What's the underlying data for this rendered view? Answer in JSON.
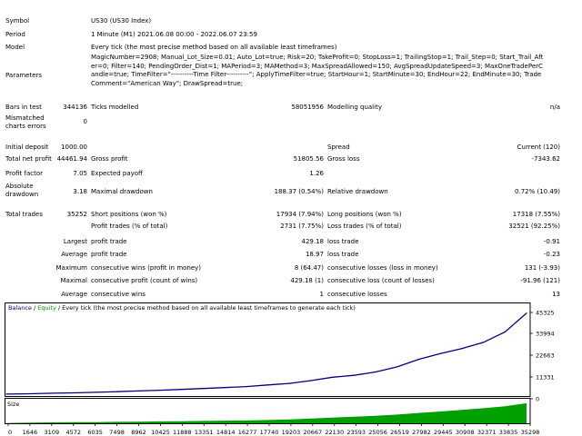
{
  "header": {
    "symbol_label": "Symbol",
    "symbol_value": "US30 (US30 Index)",
    "period_label": "Period",
    "period_value": "1 Minute (M1) 2021.06.08 00:00 - 2022.06.07 23:59",
    "model_label": "Model",
    "model_value": "Every tick (the most precise method based on all available least timeframes)",
    "parameters_label": "Parameters",
    "parameters_value": "MagicNumber=2908; Manual_Lot_Size=0.01; Auto_Lot=true; Risk=20; TakeProfit=0; StopLoss=1; TrailingStop=1; Trail_Step=0; Start_Trail_After=0; Filter=140; PendingOrder_Dist=1; MAPeriod=3; MAMethod=3; MaxSpreadAllowed=150; AvgSpreadUpdateSpeed=3; MaxOneTradePerCandle=true; TimeFilter=\"----------Time Filter----------\"; ApplyTimeFilter=true; StartHour=1; StartMinute=30; EndHour=22; EndMinute=30; TradeComment=\"American Way\"; DrawSpread=true;"
  },
  "stats": {
    "bars_label": "Bars in test",
    "bars_value": "344136",
    "ticks_label": "Ticks modelled",
    "ticks_value": "58051956",
    "quality_label": "Modelling quality",
    "quality_value": "n/a",
    "mismatched_label": "Mismatched charts errors",
    "mismatched_value": "0",
    "initial_label": "Initial deposit",
    "initial_value": "1000.00",
    "spread_label": "Spread",
    "spread_value": "Current (120)",
    "netprofit_label": "Total net profit",
    "netprofit_value": "44461.94",
    "grossprofit_label": "Gross profit",
    "grossprofit_value": "51805.56",
    "grossloss_label": "Gross loss",
    "grossloss_value": "-7343.62",
    "pf_label": "Profit factor",
    "pf_value": "7.05",
    "ep_label": "Expected payoff",
    "ep_value": "1.26",
    "absdd_label": "Absolute drawdown",
    "absdd_value": "3.18",
    "maxdd_label": "Maximal drawdown",
    "maxdd_value": "188.37 (0.54%)",
    "reldd_label": "Relative drawdown",
    "reldd_value": "0.72% (10.49)",
    "trades_label": "Total trades",
    "trades_value": "35252",
    "short_label": "Short positions (won %)",
    "short_value": "17934 (7.94%)",
    "long_label": "Long positions (won %)",
    "long_value": "17318 (7.55%)",
    "proftr_label": "Profit trades (% of total)",
    "proftr_value": "2731 (7.75%)",
    "losstr_label": "Loss trades (% of total)",
    "losstr_value": "32521 (92.25%)",
    "largest_label": "Largest",
    "largest_profit_label": "profit trade",
    "largest_profit_value": "429.18",
    "largest_loss_label": "loss trade",
    "largest_loss_value": "-0.91",
    "average_label": "Average",
    "average_profit_label": "profit trade",
    "average_profit_value": "18.97",
    "average_loss_label": "loss trade",
    "average_loss_value": "-0.23",
    "maxcons_label": "Maximum",
    "maxcons_wins_label": "consecutive wins (profit in money)",
    "maxcons_wins_value": "8 (64.47)",
    "maxcons_losses_label": "consecutive losses (loss in money)",
    "maxcons_losses_value": "131 (-3.93)",
    "maxlcons_label": "Maximal",
    "maxlcons_wins_label": "consecutive profit (count of wins)",
    "maxlcons_wins_value": "429.18 (1)",
    "maxlcons_losses_label": "consecutive loss (count of losses)",
    "maxlcons_losses_value": "-91.96 (121)",
    "avgcons_label": "Average",
    "avgcons_wins_label": "consecutive wins",
    "avgcons_wins_value": "1",
    "avgcons_losses_label": "consecutive losses",
    "avgcons_losses_value": "13"
  },
  "chart_data": {
    "type": "area",
    "legend": [
      {
        "text": "Balance",
        "color": "#000080"
      },
      {
        "text": " / ",
        "color": "#000000"
      },
      {
        "text": "Equity",
        "color": "#00a000"
      },
      {
        "text": " / Every tick (the most precise method based on all available least timeframes to generate each tick)",
        "color": "#000000"
      }
    ],
    "size_label": "Size",
    "y_ticks": [
      "45325",
      "33994",
      "22663",
      "11331",
      "0"
    ],
    "x_ticks": [
      "0",
      "1646",
      "3109",
      "4572",
      "6035",
      "7498",
      "8962",
      "10425",
      "11888",
      "13351",
      "14814",
      "16277",
      "17740",
      "19203",
      "20667",
      "22130",
      "23593",
      "25056",
      "26519",
      "27982",
      "29445",
      "30908",
      "32371",
      "33835",
      "35298"
    ],
    "colors": {
      "balance": "#000080",
      "volume": "#00a000",
      "frame": "#000000"
    },
    "ylim": [
      0,
      45325
    ],
    "xlim": [
      0,
      35298
    ],
    "balance": [
      [
        0,
        1000
      ],
      [
        1646,
        1200
      ],
      [
        3109,
        1500
      ],
      [
        4572,
        1700
      ],
      [
        6035,
        2000
      ],
      [
        7498,
        2300
      ],
      [
        8962,
        2700
      ],
      [
        10425,
        3100
      ],
      [
        11888,
        3500
      ],
      [
        13351,
        4000
      ],
      [
        14814,
        4500
      ],
      [
        16277,
        5000
      ],
      [
        17740,
        5900
      ],
      [
        19203,
        6700
      ],
      [
        20667,
        8200
      ],
      [
        22130,
        10000
      ],
      [
        23593,
        11000
      ],
      [
        25056,
        12800
      ],
      [
        26519,
        15500
      ],
      [
        27982,
        19500
      ],
      [
        29445,
        22500
      ],
      [
        30908,
        25200
      ],
      [
        32371,
        28500
      ],
      [
        33835,
        34000
      ],
      [
        35298,
        44000
      ]
    ],
    "volume": [
      [
        0,
        1
      ],
      [
        1646,
        3
      ],
      [
        3109,
        4
      ],
      [
        4572,
        5
      ],
      [
        6035,
        5
      ],
      [
        7498,
        6
      ],
      [
        8962,
        7
      ],
      [
        10425,
        8
      ],
      [
        11888,
        9
      ],
      [
        13351,
        10
      ],
      [
        14814,
        11
      ],
      [
        16277,
        12
      ],
      [
        17740,
        14
      ],
      [
        19203,
        16
      ],
      [
        20667,
        20
      ],
      [
        22130,
        24
      ],
      [
        23593,
        28
      ],
      [
        25056,
        32
      ],
      [
        26519,
        37
      ],
      [
        27982,
        44
      ],
      [
        29445,
        50
      ],
      [
        30908,
        57
      ],
      [
        32371,
        64
      ],
      [
        33835,
        72
      ],
      [
        35298,
        85
      ]
    ],
    "volume_max": 100
  }
}
